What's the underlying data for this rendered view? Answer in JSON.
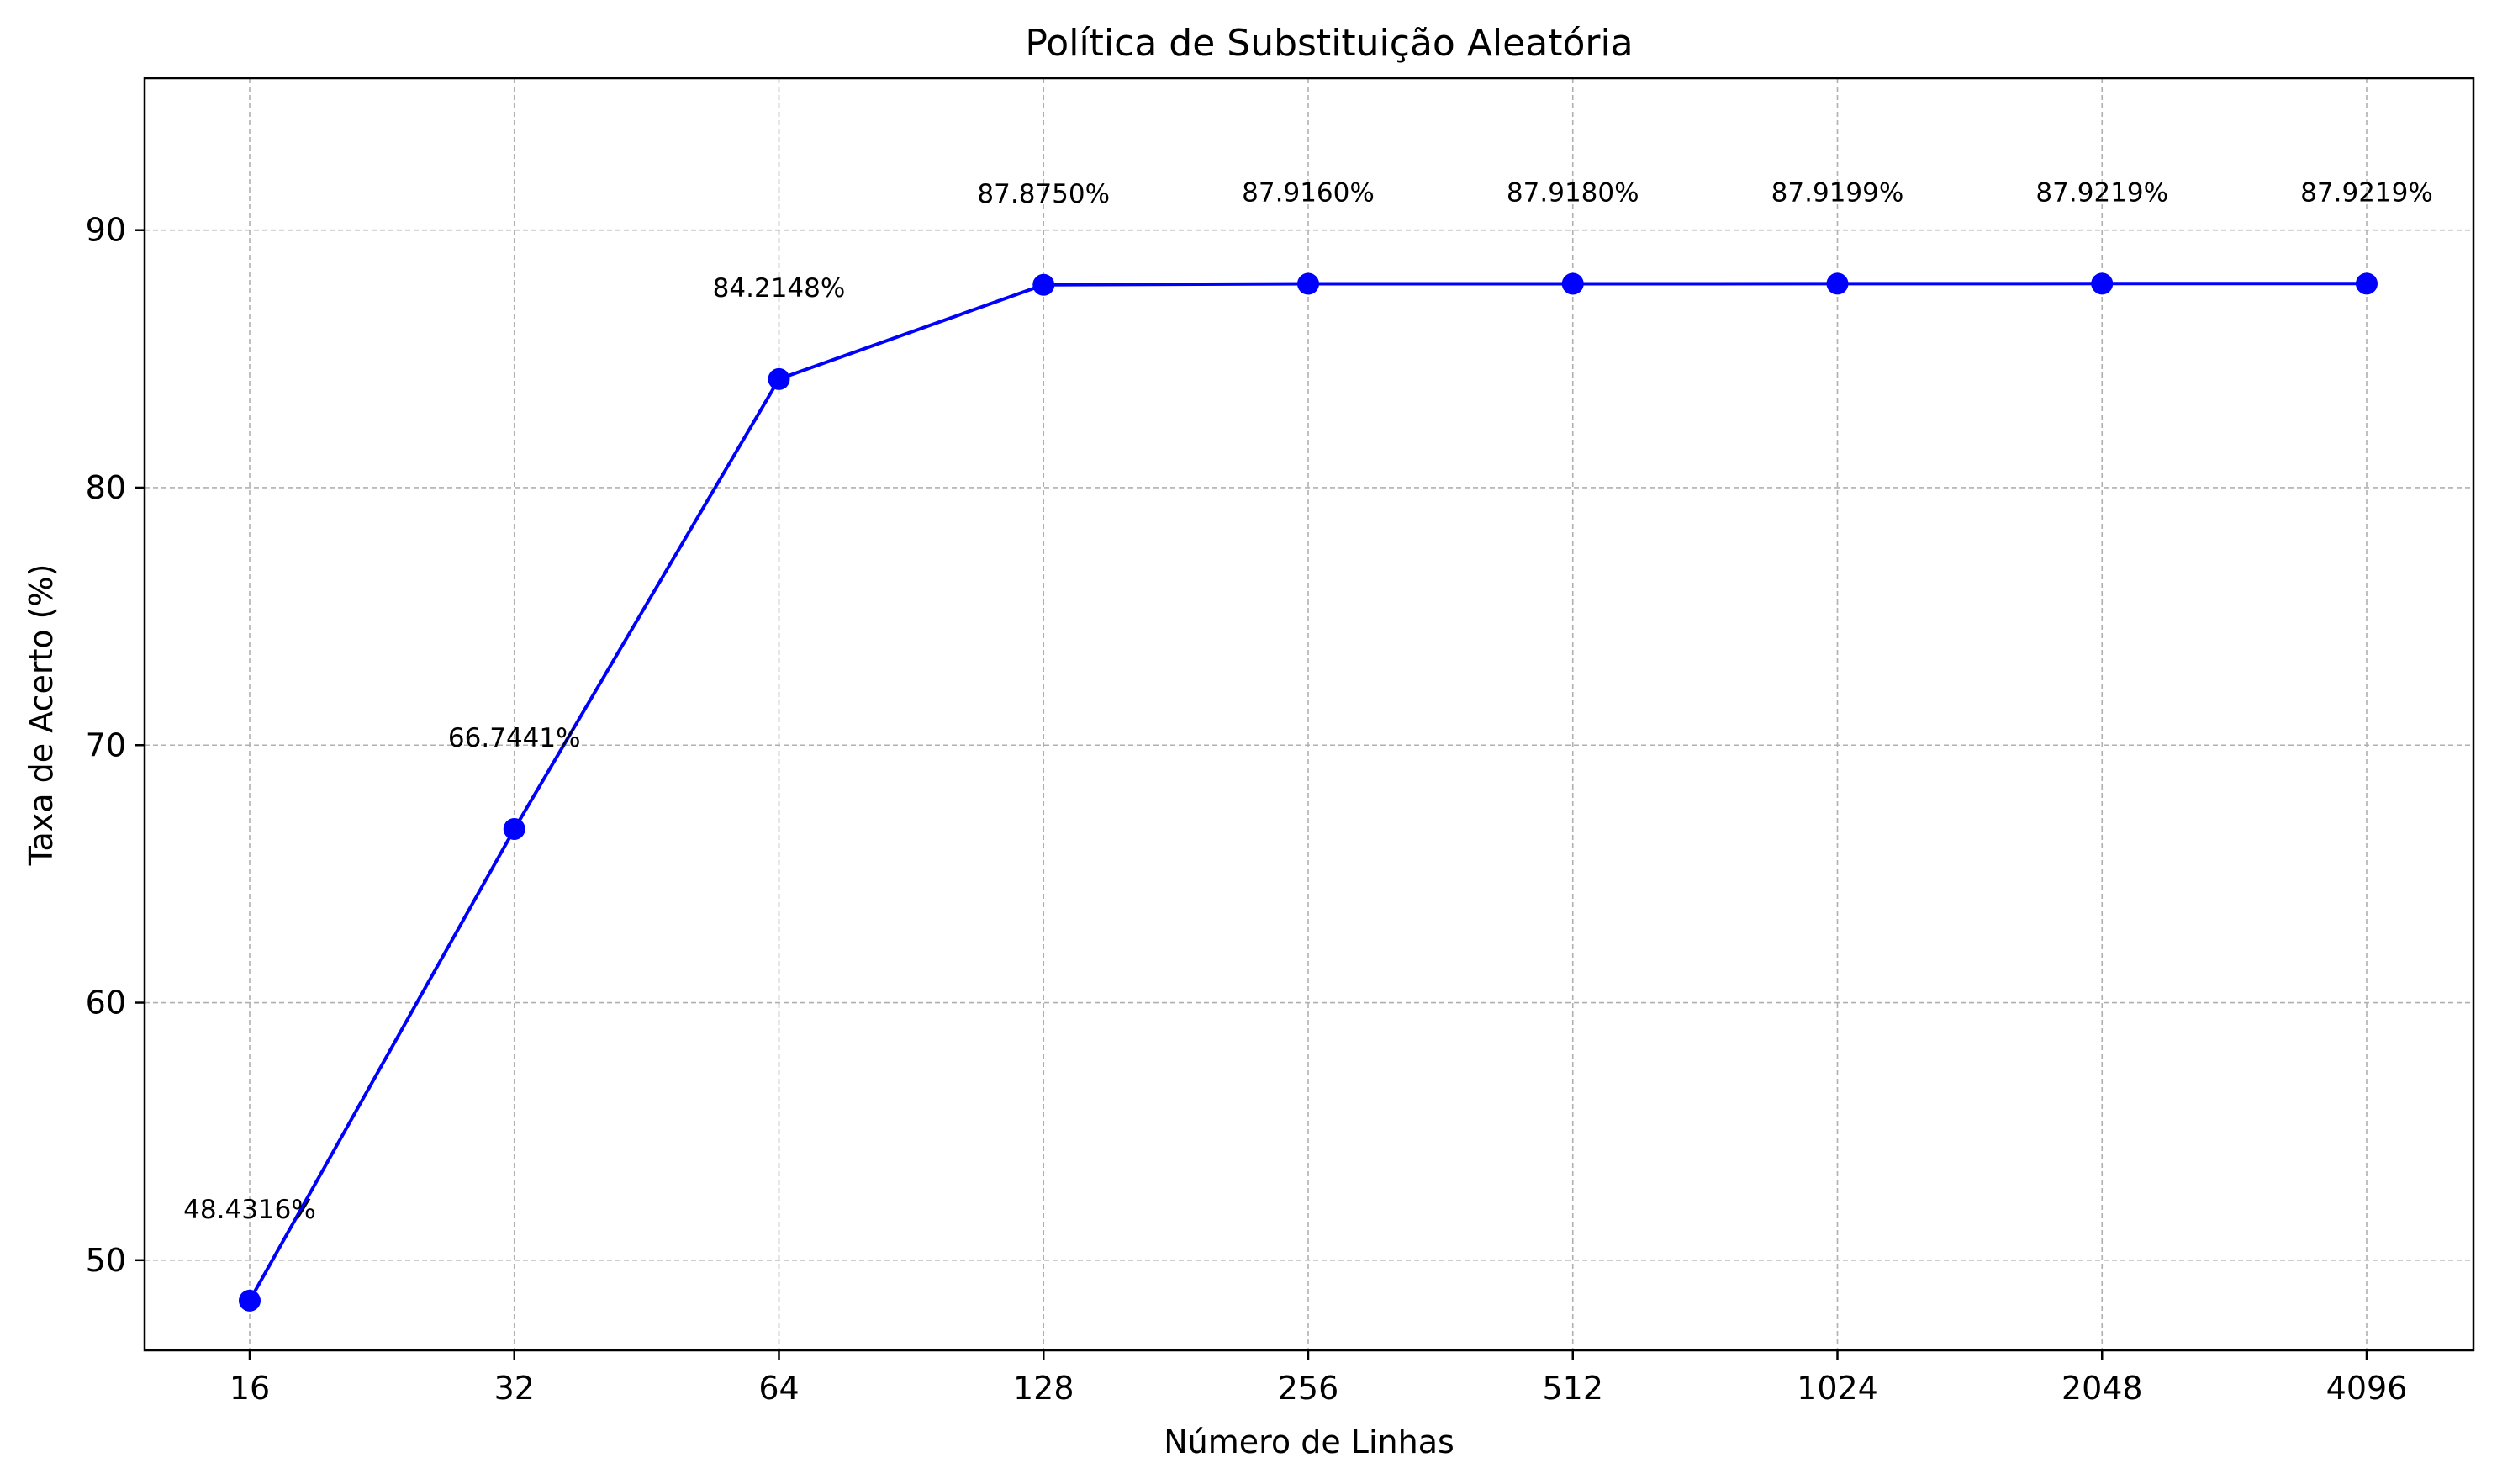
{
  "chart_data": {
    "type": "line",
    "title": "Política de Substituição Aleatória",
    "xlabel": "Número de Linhas",
    "ylabel": "Taxa de Acerto (%)",
    "categories": [
      "16",
      "32",
      "64",
      "128",
      "256",
      "512",
      "1024",
      "2048",
      "4096"
    ],
    "series": [
      {
        "values": [
          48.4316,
          66.7441,
          84.2148,
          87.875,
          87.916,
          87.918,
          87.9199,
          87.9219,
          87.9219
        ],
        "labels": [
          "48.4316%",
          "66.7441%",
          "84.2148%",
          "87.8750%",
          "87.9160%",
          "87.9180%",
          "87.9199%",
          "87.9219%",
          "87.9219%"
        ]
      }
    ],
    "yticks": [
      "50",
      "60",
      "70",
      "80",
      "90"
    ],
    "ylim": [
      46.5,
      95.9
    ],
    "grid": true,
    "marker": "circle",
    "color": "#0000ff"
  }
}
